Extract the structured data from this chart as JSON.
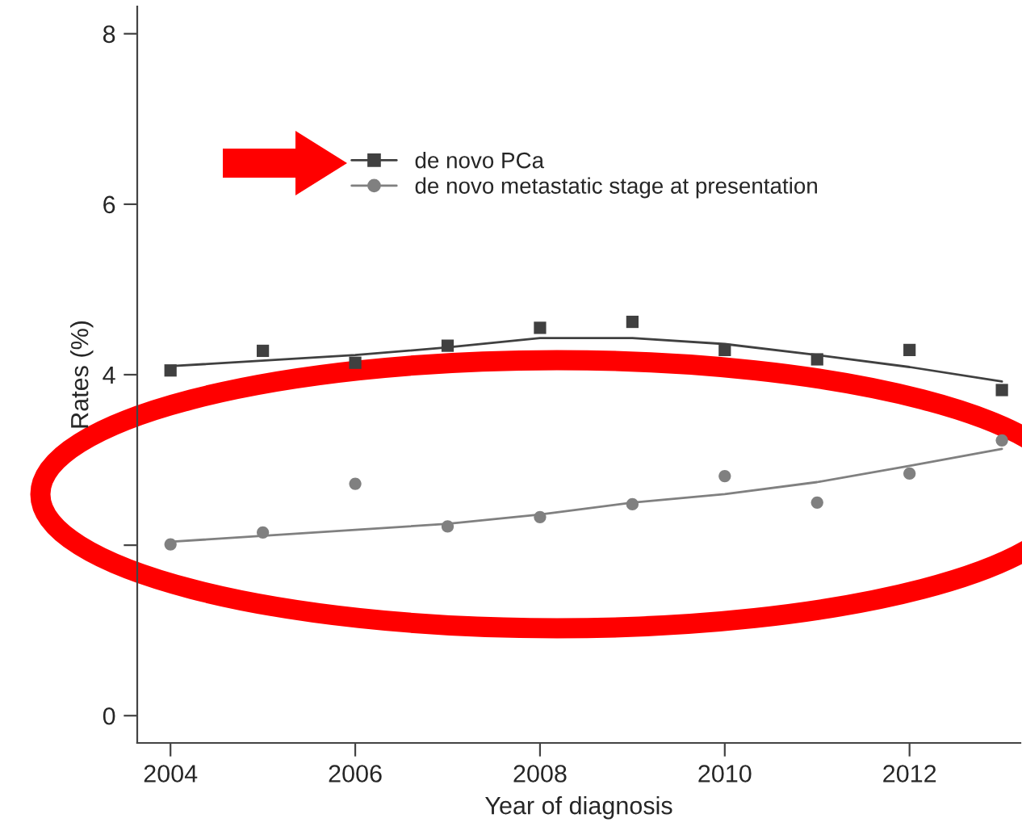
{
  "chart_data": {
    "type": "scatter",
    "xlabel": "Year of diagnosis",
    "ylabel": "Rates (%)",
    "x": [
      2004,
      2005,
      2006,
      2007,
      2008,
      2009,
      2010,
      2011,
      2012,
      2013
    ],
    "series": [
      {
        "name": "de novo PCa",
        "marker": "square",
        "color": "#404040",
        "values": [
          4.05,
          4.28,
          4.14,
          4.34,
          4.55,
          4.62,
          4.29,
          4.18,
          4.29,
          3.82
        ]
      },
      {
        "name": "de novo metastatic stage at presentation",
        "marker": "circle",
        "color": "#808080",
        "values": [
          2.01,
          2.15,
          2.72,
          2.22,
          2.33,
          2.48,
          2.81,
          2.5,
          2.84,
          3.23
        ]
      },
      {
        "type": "line",
        "marker": "none",
        "color": "#404040",
        "x": [
          2004,
          2006,
          2007,
          2008,
          2009,
          2010,
          2011,
          2012,
          2013
        ],
        "values": [
          4.1,
          4.23,
          4.32,
          4.43,
          4.43,
          4.36,
          4.23,
          4.09,
          3.92
        ]
      },
      {
        "type": "line",
        "marker": "none",
        "color": "#808080",
        "x": [
          2004,
          2006,
          2007,
          2008,
          2009,
          2010,
          2011,
          2012,
          2013
        ],
        "values": [
          2.04,
          2.18,
          2.25,
          2.36,
          2.5,
          2.6,
          2.74,
          2.93,
          3.13
        ]
      }
    ],
    "xlim": [
      2003.64,
      2013.2
    ],
    "ylim": [
      -0.32,
      8.32
    ],
    "xticks": [
      2004,
      2006,
      2008,
      2010,
      2012
    ],
    "yticks": [
      0,
      {
        "value": 2,
        "label": null
      },
      4,
      6,
      8
    ],
    "grid": false,
    "legend": "top left"
  }
}
